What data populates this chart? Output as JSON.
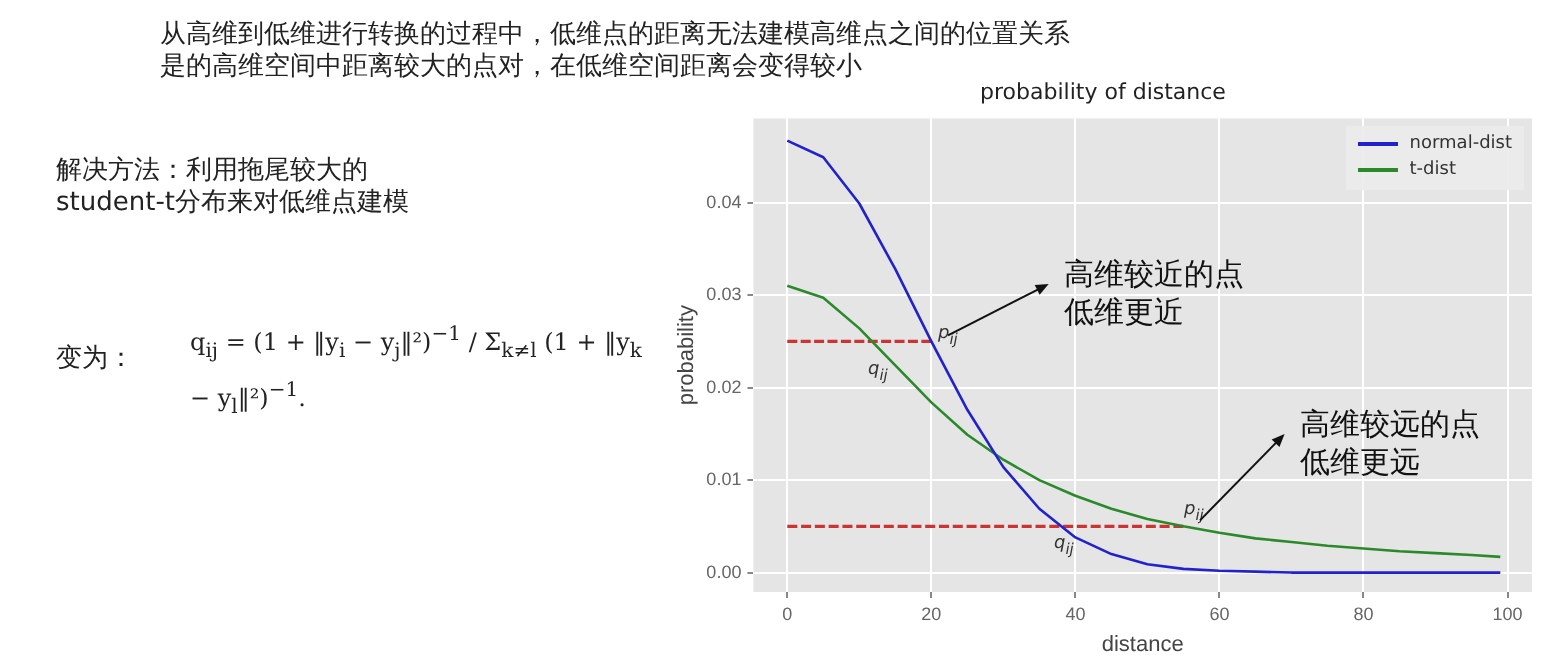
{
  "chart_data": {
    "type": "line",
    "title": "probability of distance",
    "xlabel": "distance",
    "ylabel": "probability",
    "xlim": [
      -4.7,
      103.4
    ],
    "xticks": [
      0,
      20,
      40,
      60,
      80,
      100
    ],
    "ylim": [
      -0.0021,
      0.0491
    ],
    "yticks": [
      {
        "value": 0,
        "label": "0.00"
      },
      {
        "value": 0.01,
        "label": "0.01"
      },
      {
        "value": 0.02,
        "label": "0.02"
      },
      {
        "value": 0.03,
        "label": "0.03"
      },
      {
        "value": 0.04,
        "label": "0.04"
      }
    ],
    "grid": true,
    "legend": "top right",
    "marker": "none",
    "line_style": "solid",
    "x": [
      0,
      5,
      10,
      15,
      20,
      25,
      30,
      35,
      40,
      45,
      50,
      55,
      60,
      65,
      70,
      75,
      80,
      85,
      90,
      95,
      99
    ],
    "series": [
      {
        "name": "normal-dist",
        "color": "#2222cc",
        "values": [
          0.0467,
          0.0449,
          0.0399,
          0.0328,
          0.025,
          0.0176,
          0.0114,
          0.0069,
          0.0038,
          0.002,
          0.0009,
          0.0004,
          0.0002,
          0.0001,
          0,
          0,
          0,
          0,
          0,
          0,
          0
        ]
      },
      {
        "name": "t-dist",
        "color": "#2a8a2a",
        "values": [
          0.031,
          0.0297,
          0.0264,
          0.0224,
          0.0184,
          0.0149,
          0.0122,
          0.01,
          0.0083,
          0.0069,
          0.0058,
          0.005,
          0.0043,
          0.0037,
          0.0033,
          0.0029,
          0.0026,
          0.0023,
          0.0021,
          0.0019,
          0.0017
        ]
      },
      {
        "type": "line",
        "color": "#cc3333",
        "line_style": "dashed",
        "x": [
          0,
          20
        ],
        "values": [
          0.025,
          0.025
        ]
      },
      {
        "type": "line",
        "color": "#cc3333",
        "line_style": "dashed",
        "x": [
          0,
          55
        ],
        "values": [
          0.005,
          0.005
        ]
      }
    ],
    "annotations": [
      "从高维到低维进行转换的过程中，低维点的距离无法建模高维点之间的位置关系是的高维空间中距离较大的点对，在低维空间距离会变得较小",
      "解决方法：利用拖尾较大的\nstudent-t分布来对低维点建模",
      "变为：",
      "q$_{ij}$ = (1 + ‖y$_{i}$ − y$_{j}$‖²)$^{−1}$ / Σ$_{k≠l}$ (1 + ‖y$_{k}$ − y$_{l}$‖²)$^{−1}$.",
      "p$_{ij}$",
      "q$_{ij}$",
      "p$_{ij}$",
      "q$_{ij}$",
      {
        "text": "高维较近的点低维更近",
        "x": 20,
        "y": 0.025
      },
      {
        "text": "高维较远的点低维更远",
        "x": 55,
        "y": 0.005
      }
    ]
  }
}
